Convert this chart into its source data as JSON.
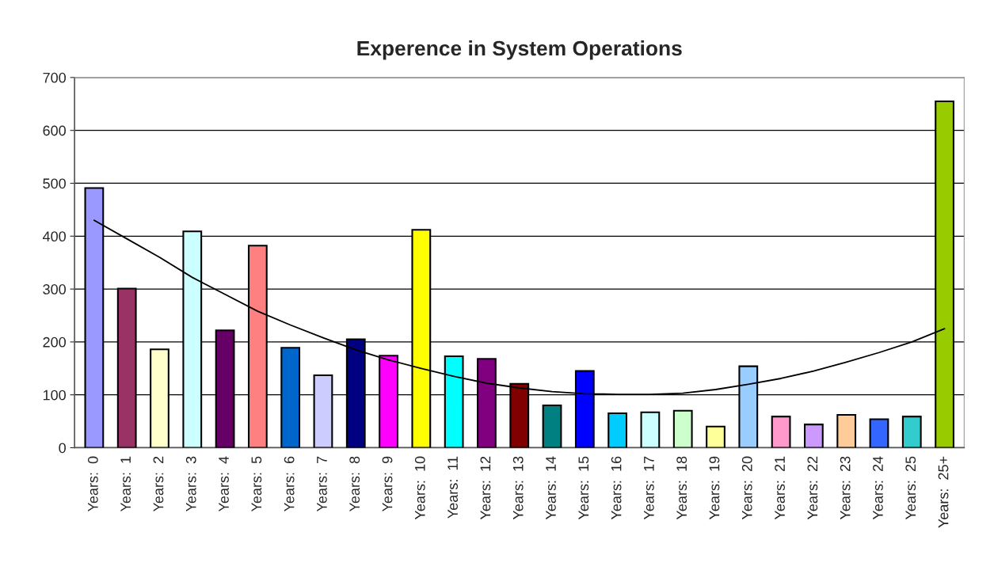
{
  "chart_data": {
    "type": "bar",
    "title": "Experence in System Operations",
    "categories": [
      "Years:  0",
      "Years:  1",
      "Years:  2",
      "Years:  3",
      "Years:  4",
      "Years:  5",
      "Years:  6",
      "Years:  7",
      "Years:  8",
      "Years:  9",
      "Years:  10",
      "Years:  11",
      "Years:  12",
      "Years:  13",
      "Years:  14",
      "Years:  15",
      "Years:  16",
      "Years:  17",
      "Years:  18",
      "Years:  19",
      "Years:  20",
      "Years:  21",
      "Years:  22",
      "Years:  23",
      "Years:  24",
      "Years:  25",
      "Years:  25+"
    ],
    "series": [
      {
        "values": [
          491,
          301,
          186,
          409,
          222,
          382,
          189,
          137,
          205,
          174,
          412,
          173,
          168,
          121,
          80,
          145,
          65,
          67,
          70,
          40,
          154,
          59,
          44,
          62,
          54,
          59,
          655
        ],
        "colors": [
          "#9999ff",
          "#993366",
          "#ffffcc",
          "#ccffff",
          "#660066",
          "#ff8080",
          "#0066cc",
          "#ccccff",
          "#000080",
          "#ff00ff",
          "#ffff00",
          "#00ffff",
          "#800080",
          "#800000",
          "#008080",
          "#0000ff",
          "#00ccff",
          "#ccffff",
          "#ccffcc",
          "#ffff99",
          "#99ccff",
          "#ff99cc",
          "#cc99ff",
          "#ffcc99",
          "#3366ff",
          "#33cccc",
          "#99cc00"
        ]
      },
      {
        "type": "line",
        "color": "#000000",
        "values": [
          430,
          395,
          360,
          322,
          290,
          258,
          232,
          208,
          185,
          166,
          150,
          135,
          122,
          113,
          106,
          102,
          101,
          101,
          103,
          110,
          120,
          131,
          145,
          162,
          180,
          200,
          225
        ]
      }
    ],
    "ylim": [
      0,
      700
    ],
    "yticks": [
      0,
      100,
      200,
      300,
      400,
      500,
      600,
      700
    ],
    "grid": "y",
    "legend": false
  }
}
